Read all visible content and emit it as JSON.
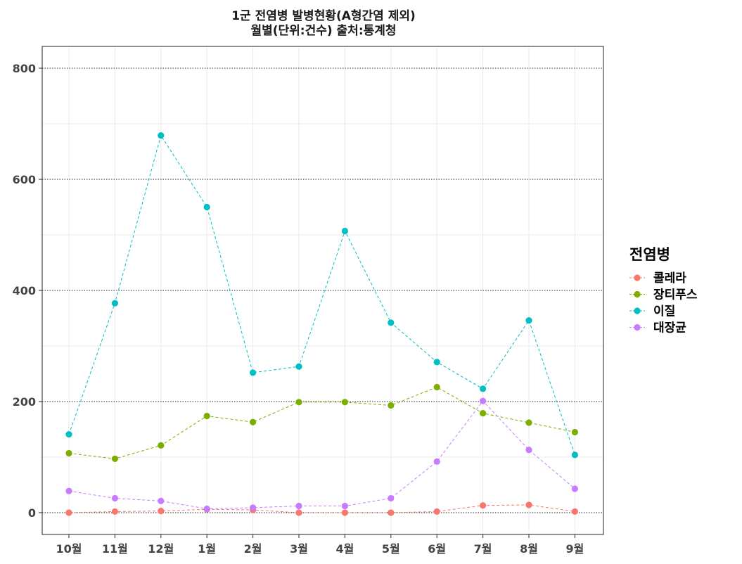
{
  "chart_data": {
    "type": "line",
    "title": "1군 전염병 발병현황(A형간염 제외)",
    "subtitle": "월별(단위:건수)  출처:통계청",
    "xlabel": "",
    "ylabel": "",
    "categories": [
      "10월",
      "11월",
      "12월",
      "1월",
      "2월",
      "3월",
      "4월",
      "5월",
      "6월",
      "7월",
      "8월",
      "9월"
    ],
    "ylim": [
      -40,
      840
    ],
    "yticks": [
      0,
      200,
      400,
      600,
      800
    ],
    "grid": true,
    "legend": {
      "title": "전염병",
      "position": "right"
    },
    "series": [
      {
        "name": "콜레라",
        "color": "#F8766D",
        "values": [
          0,
          2,
          3,
          6,
          5,
          0,
          0,
          0,
          2,
          13,
          14,
          2
        ]
      },
      {
        "name": "장티푸스",
        "color": "#7CAE00",
        "values": [
          107,
          97,
          121,
          174,
          163,
          199,
          199,
          193,
          226,
          179,
          162,
          145
        ]
      },
      {
        "name": "이질",
        "color": "#00BFC4",
        "values": [
          141,
          377,
          679,
          550,
          252,
          263,
          507,
          342,
          271,
          223,
          346,
          104
        ]
      },
      {
        "name": "대장균",
        "color": "#C77CFF",
        "values": [
          39,
          26,
          21,
          7,
          9,
          12,
          12,
          26,
          92,
          201,
          113,
          43
        ]
      }
    ]
  }
}
